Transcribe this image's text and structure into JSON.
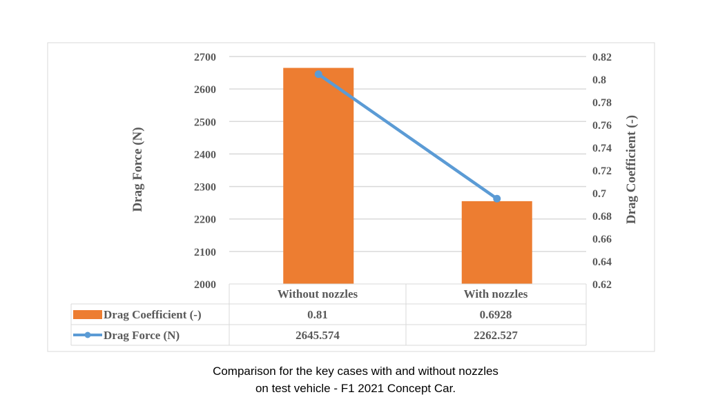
{
  "chart_data": {
    "type": "bar+line",
    "categories": [
      "Without nozzles",
      "With nozzles"
    ],
    "series": [
      {
        "name": "Drag Coefficient (-)",
        "type": "bar",
        "axis": "right",
        "values": [
          0.81,
          0.6928
        ],
        "color": "#ED7D31"
      },
      {
        "name": "Drag Force (N)",
        "type": "line",
        "axis": "left",
        "values": [
          2645.574,
          2262.527
        ],
        "color": "#5B9BD5"
      }
    ],
    "ylabel_left": "Drag Force (N)",
    "ylabel_right": "Drag Coefficient (-)",
    "ylim_left": [
      2000,
      2700
    ],
    "ylim_right": [
      0.62,
      0.82
    ],
    "yticks_left": [
      "2000",
      "2100",
      "2200",
      "2300",
      "2400",
      "2500",
      "2600",
      "2700"
    ],
    "yticks_right": [
      "0.62",
      "0.64",
      "0.66",
      "0.68",
      "0.7",
      "0.72",
      "0.74",
      "0.76",
      "0.78",
      "0.8",
      "0.82"
    ],
    "data_table": {
      "rows": [
        {
          "label": "Drag Coefficient (-)",
          "cells": [
            "0.81",
            "0.6928"
          ]
        },
        {
          "label": "Drag Force (N)",
          "cells": [
            "2645.574",
            "2262.527"
          ]
        }
      ]
    },
    "grid": true,
    "legend": "data-table"
  },
  "caption": {
    "line1": "Comparison for the key cases with and without nozzles",
    "line2": "on test vehicle - F1 2021 Concept Car."
  }
}
